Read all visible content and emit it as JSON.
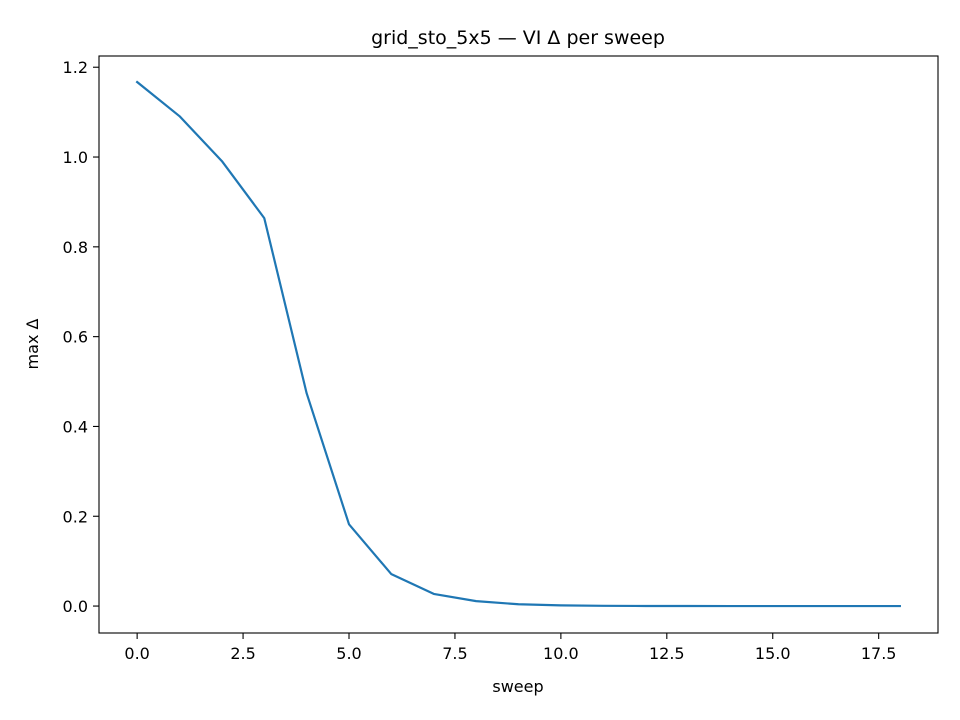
{
  "chart_data": {
    "type": "line",
    "title": "grid_sto_5x5 — VI Δ per sweep",
    "xlabel": "sweep",
    "ylabel": "max Δ",
    "xlim": [
      -0.9,
      18.9
    ],
    "ylim": [
      -0.06,
      1.225
    ],
    "x_ticks": [
      0.0,
      2.5,
      5.0,
      7.5,
      10.0,
      12.5,
      15.0,
      17.5
    ],
    "x_tick_labels": [
      "0.0",
      "2.5",
      "5.0",
      "7.5",
      "10.0",
      "12.5",
      "15.0",
      "17.5"
    ],
    "y_ticks": [
      0.0,
      0.2,
      0.4,
      0.6,
      0.8,
      1.0,
      1.2
    ],
    "y_tick_labels": [
      "0.0",
      "0.2",
      "0.4",
      "0.6",
      "0.8",
      "1.0",
      "1.2"
    ],
    "grid": false,
    "legend": "none",
    "series": [
      {
        "color": "#1f77b4",
        "x": [
          0,
          1,
          2,
          3,
          4,
          5,
          6,
          7,
          8,
          9,
          10,
          11,
          12,
          13,
          14,
          15,
          16,
          17,
          18
        ],
        "y": [
          1.167,
          1.091,
          0.991,
          0.864,
          0.474,
          0.182,
          0.071,
          0.027,
          0.011,
          0.004,
          0.0015,
          0.0006,
          0.0002,
          0.0001,
          0.0,
          0.0,
          0.0,
          0.0,
          0.0
        ]
      }
    ]
  }
}
